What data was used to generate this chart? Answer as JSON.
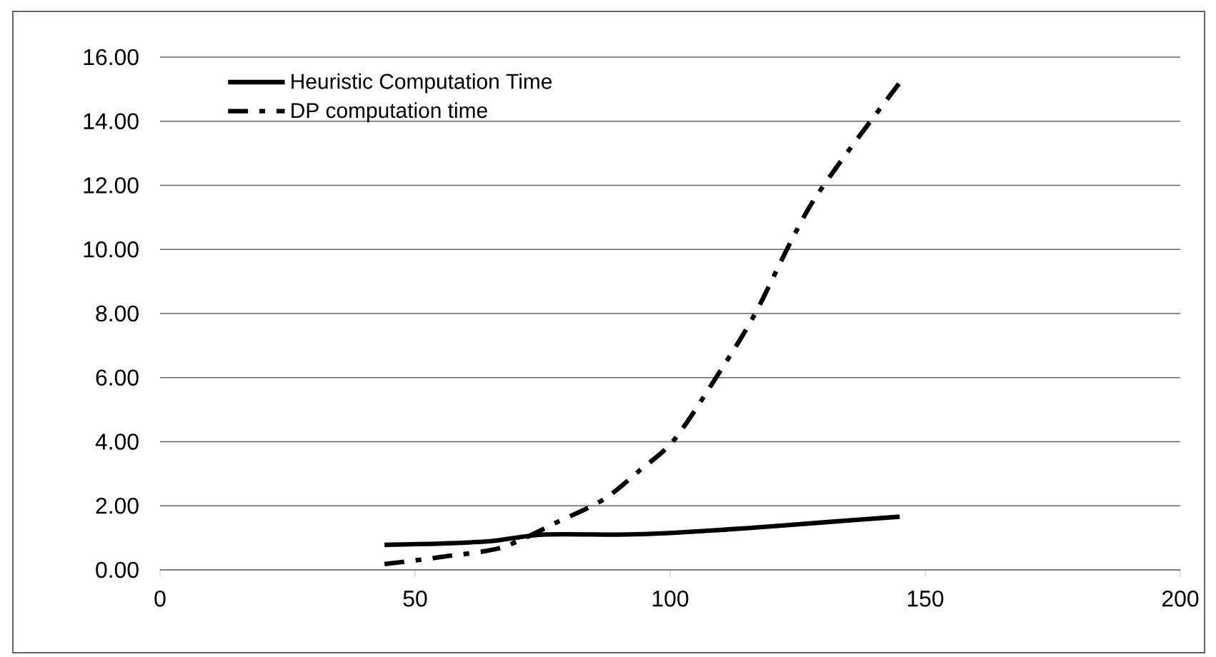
{
  "chart_data": {
    "type": "line",
    "xlim": [
      0,
      200
    ],
    "xticks": [
      0,
      50,
      100,
      150,
      200
    ],
    "ylim": [
      0,
      16
    ],
    "yticks": [
      {
        "value": 0,
        "label": "0.00"
      },
      {
        "value": 2,
        "label": "2.00"
      },
      {
        "value": 4,
        "label": "4.00"
      },
      {
        "value": 6,
        "label": "6.00"
      },
      {
        "value": 8,
        "label": "8.00"
      },
      {
        "value": 10,
        "label": "10.00"
      },
      {
        "value": 12,
        "label": "12.00"
      },
      {
        "value": 14,
        "label": "14.00"
      },
      {
        "value": 16,
        "label": "16.00"
      }
    ],
    "grid": "y",
    "legend": "top left",
    "marker": "none",
    "series": [
      {
        "name": "Heuristic  Computation Time",
        "color": "#000000",
        "line_style": "solid",
        "x": [
          44,
          55,
          65,
          75,
          90,
          100,
          115,
          130,
          145
        ],
        "values": [
          0.78,
          0.82,
          0.9,
          1.1,
          1.1,
          1.15,
          1.3,
          1.48,
          1.66
        ]
      },
      {
        "name": "DP computation time",
        "color": "#000000",
        "line_style": "dashdot",
        "x": [
          44,
          55,
          67,
          78,
          87,
          94,
          101,
          111,
          117,
          128,
          145
        ],
        "values": [
          0.18,
          0.4,
          0.7,
          1.5,
          2.2,
          3.1,
          4.1,
          6.5,
          8.1,
          11.5,
          15.2
        ]
      }
    ]
  }
}
